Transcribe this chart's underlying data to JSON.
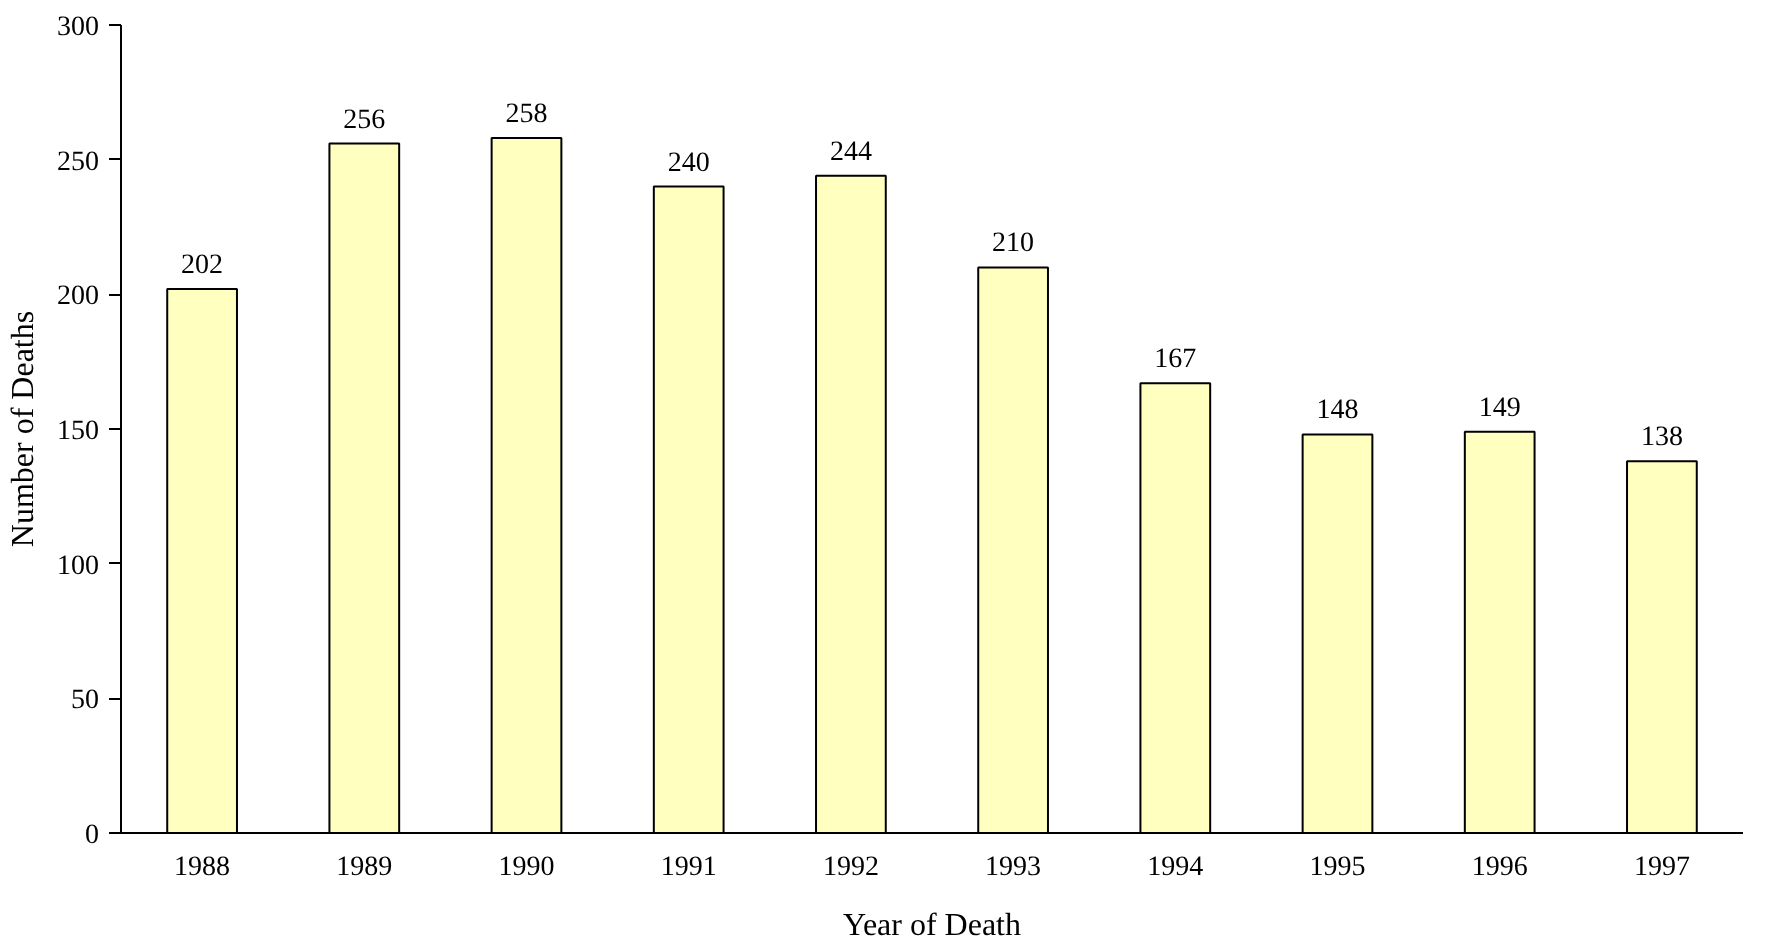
{
  "chart_data": {
    "type": "bar",
    "xlabel": "Year of Death",
    "ylabel": "Number of Deaths",
    "categories": [
      "1988",
      "1989",
      "1990",
      "1991",
      "1992",
      "1993",
      "1994",
      "1995",
      "1996",
      "1997"
    ],
    "values": [
      202,
      256,
      258,
      240,
      244,
      210,
      167,
      148,
      149,
      138
    ],
    "color": "#ffffc0",
    "data_labels": true,
    "ylim": [
      0,
      300
    ],
    "yticks": [
      0,
      50,
      100,
      150,
      200,
      250,
      300
    ],
    "grid": false
  }
}
